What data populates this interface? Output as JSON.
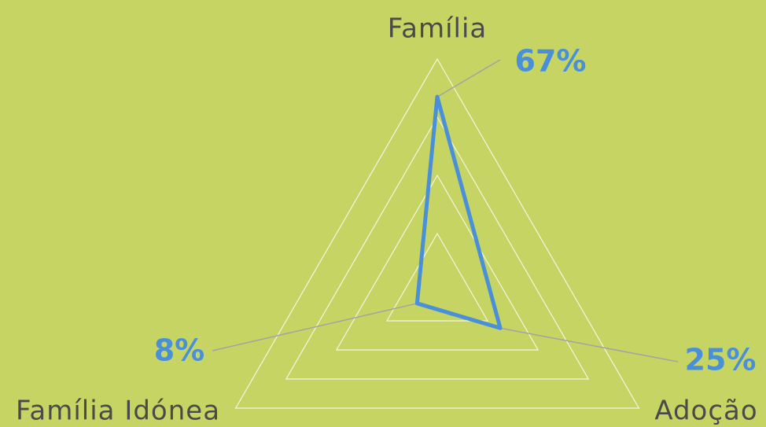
{
  "chart_data": {
    "type": "radar",
    "categories": [
      "Família",
      "Adoção",
      "Família Idónea"
    ],
    "values": [
      67,
      25,
      8
    ],
    "value_labels": [
      "67%",
      "25%",
      "8%"
    ],
    "color": "#4a90d9",
    "rlim": [
      0,
      80
    ],
    "rticks": [
      20,
      40,
      60,
      80
    ],
    "grid": true
  }
}
